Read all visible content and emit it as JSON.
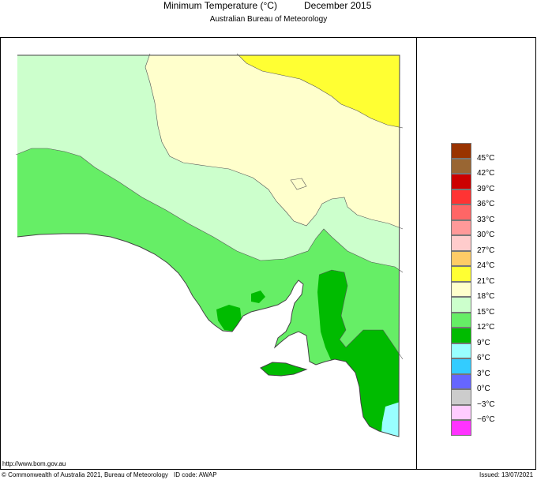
{
  "title": "Minimum Temperature (°C)",
  "month": "December 2015",
  "agency": "Australian Bureau of Meteorology",
  "url": "http://www.bom.gov.au",
  "copyright": "© Commonwealth of Australia 2021, Bureau of Meteorology",
  "id_code": "ID code: AWAP",
  "issued": "Issued: 13/07/2021",
  "legend": {
    "top_color": "#993300",
    "colors": [
      "#996633",
      "#cc0000",
      "#ff3333",
      "#ff6666",
      "#ff9999",
      "#ffcccc",
      "#ffcc66",
      "#ffff33",
      "#ffffcc",
      "#ccffcc",
      "#66ee66",
      "#00bb00",
      "#99ffff",
      "#33ccff",
      "#6666ff",
      "#cccccc",
      "#ffccff",
      "#ff33ff",
      "#990099"
    ],
    "labels": [
      "45°C",
      "42°C",
      "39°C",
      "36°C",
      "33°C",
      "30°C",
      "27°C",
      "24°C",
      "21°C",
      "18°C",
      "15°C",
      "12°C",
      "9°C",
      "6°C",
      "3°C",
      "0°C",
      "−3°C",
      "−6°C"
    ]
  },
  "regions": [
    {
      "name": "far-north-east",
      "band": "24°C – 27°C",
      "color": "#ffff33"
    },
    {
      "name": "north",
      "band": "21°C – 24°C",
      "color": "#ffffcc"
    },
    {
      "name": "central-west",
      "band": "18°C – 21°C",
      "color": "#ccffcc"
    },
    {
      "name": "coastal-south",
      "band": "15°C – 18°C",
      "color": "#66ee66"
    },
    {
      "name": "south-east",
      "band": "12°C – 15°C",
      "color": "#00bb00"
    },
    {
      "name": "south-east-corner",
      "band": "9°C – 12°C",
      "color": "#99ffff"
    }
  ]
}
